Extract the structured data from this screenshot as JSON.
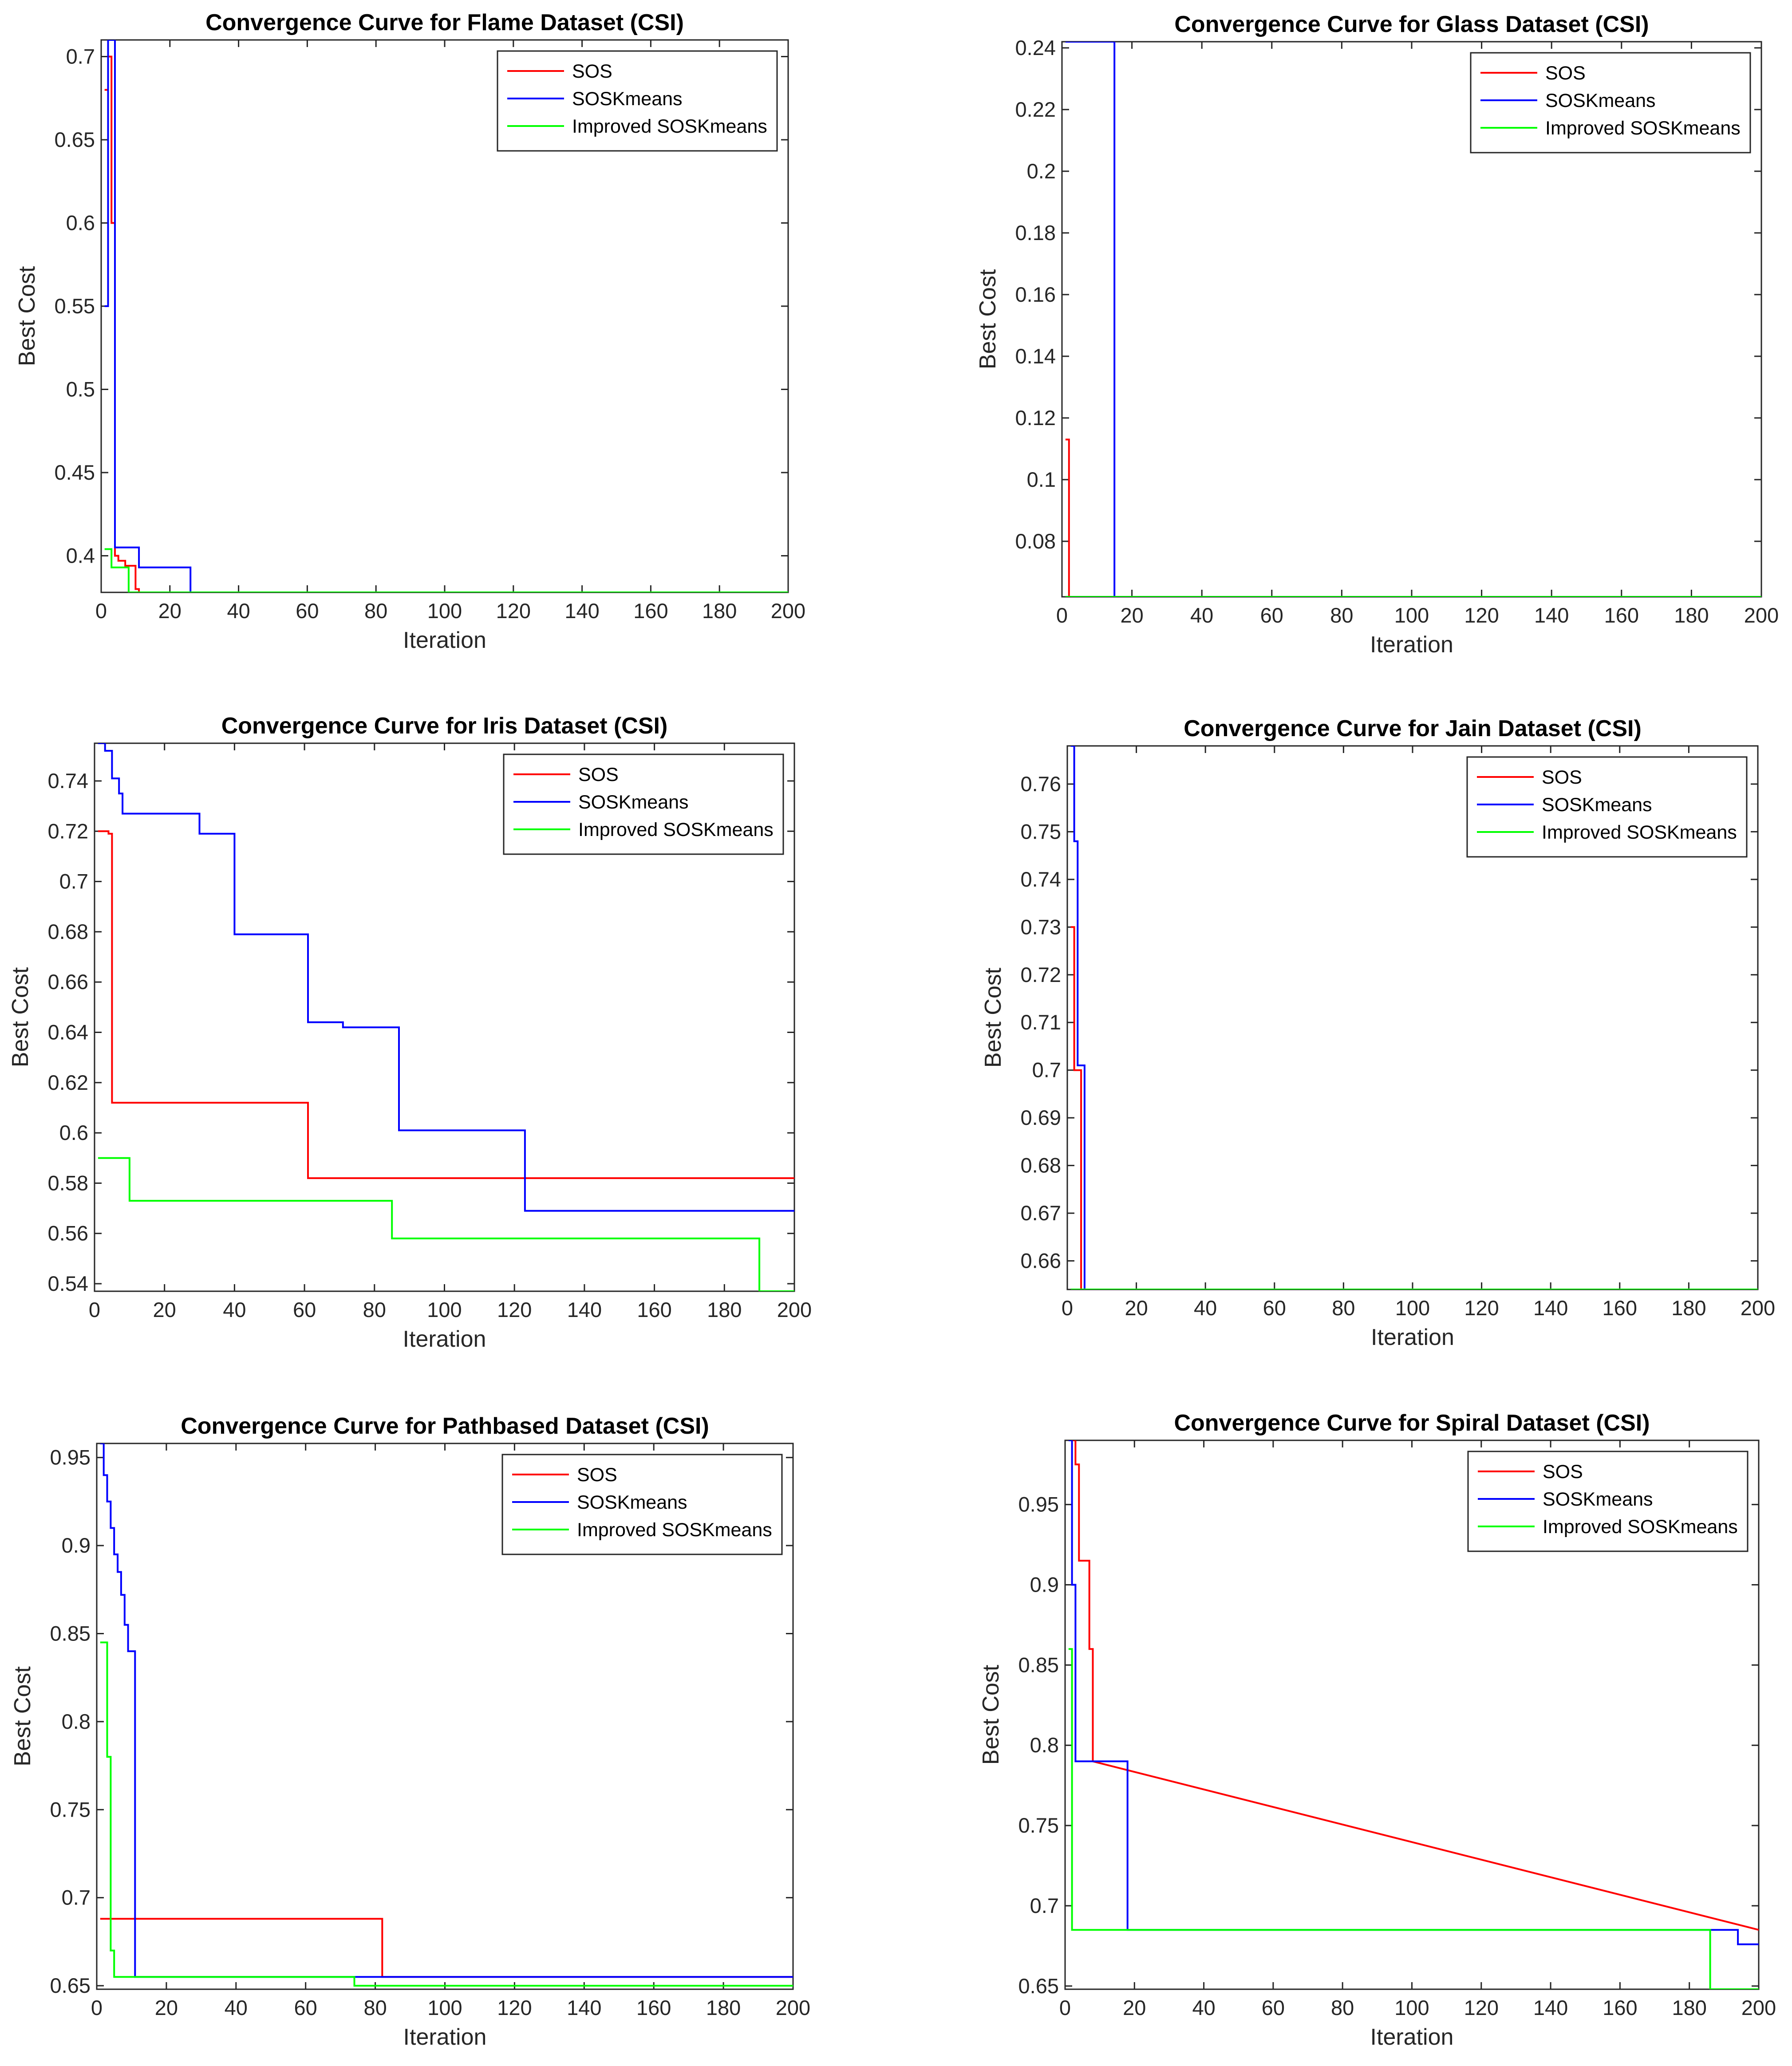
{
  "chart_data": [
    {
      "type": "line",
      "title": "Convergence Curve for Flame Dataset (CSI)",
      "xlabel": "Iteration",
      "ylabel": "Best Cost",
      "xlim": [
        0,
        200
      ],
      "ylim": [
        0.378,
        0.71
      ],
      "yticks": [
        0.4,
        0.45,
        0.5,
        0.55,
        0.6,
        0.65,
        0.7
      ],
      "ytick_labels": [
        "0.4",
        "0.45",
        "0.5",
        "0.55",
        "0.6",
        "0.65",
        "0.7"
      ],
      "xticks": [
        0,
        20,
        40,
        60,
        80,
        100,
        120,
        140,
        160,
        180,
        200
      ],
      "xtick_labels": [
        "0",
        "20",
        "40",
        "60",
        "80",
        "100",
        "120",
        "140",
        "160",
        "180",
        "200"
      ],
      "legend_position": "top-right",
      "legend": [
        "SOS",
        "SOSKmeans",
        "Improved SOSKmeans"
      ],
      "series": [
        {
          "name": "SOS",
          "color": "#ff0000",
          "x": [
            1,
            2,
            2,
            3,
            3,
            4,
            4,
            5,
            5,
            7,
            7,
            9,
            9,
            10,
            10,
            11,
            11,
            200
          ],
          "y": [
            0.68,
            0.68,
            0.7,
            0.7,
            0.6,
            0.6,
            0.4,
            0.4,
            0.397,
            0.397,
            0.394,
            0.394,
            0.394,
            0.394,
            0.38,
            0.38,
            0.378,
            0.378
          ]
        },
        {
          "name": "SOSKmeans",
          "color": "#0000ff",
          "x": [
            1,
            2,
            2,
            3,
            3,
            4,
            4,
            11,
            11,
            26,
            26,
            200
          ],
          "y": [
            0.55,
            0.55,
            0.71,
            0.71,
            0.71,
            0.71,
            0.405,
            0.405,
            0.393,
            0.393,
            0.378,
            0.378
          ]
        },
        {
          "name": "Improved SOSKmeans",
          "color": "#00ff00",
          "x": [
            1,
            3,
            3,
            7,
            7,
            8,
            8,
            200
          ],
          "y": [
            0.404,
            0.404,
            0.393,
            0.393,
            0.393,
            0.393,
            0.378,
            0.378
          ]
        }
      ]
    },
    {
      "type": "line",
      "title": "Convergence Curve for Glass Dataset (CSI)",
      "xlabel": "Iteration",
      "ylabel": "Best Cost",
      "xlim": [
        0,
        200
      ],
      "ylim": [
        0.062,
        0.242
      ],
      "yticks": [
        0.08,
        0.1,
        0.12,
        0.14,
        0.16,
        0.18,
        0.2,
        0.22,
        0.24
      ],
      "ytick_labels": [
        "0.08",
        "0.1",
        "0.12",
        "0.14",
        "0.16",
        "0.18",
        "0.2",
        "0.22",
        "0.24"
      ],
      "xticks": [
        0,
        20,
        40,
        60,
        80,
        100,
        120,
        140,
        160,
        180,
        200
      ],
      "xtick_labels": [
        "0",
        "20",
        "40",
        "60",
        "80",
        "100",
        "120",
        "140",
        "160",
        "180",
        "200"
      ],
      "legend_position": "top-right",
      "legend": [
        "SOS",
        "SOSKmeans",
        "Improved SOSKmeans"
      ],
      "series": [
        {
          "name": "SOS",
          "color": "#ff0000",
          "x": [
            1,
            2,
            2,
            200
          ],
          "y": [
            0.113,
            0.113,
            0.062,
            0.062
          ]
        },
        {
          "name": "SOSKmeans",
          "color": "#0000ff",
          "x": [
            1,
            14,
            14,
            15,
            15,
            200
          ],
          "y": [
            0.242,
            0.242,
            0.242,
            0.242,
            0.062,
            0.062
          ]
        },
        {
          "name": "Improved SOSKmeans",
          "color": "#00ff00",
          "x": [
            1,
            200
          ],
          "y": [
            0.062,
            0.062
          ]
        }
      ]
    },
    {
      "type": "line",
      "title": "Convergence Curve for Iris Dataset (CSI)",
      "xlabel": "Iteration",
      "ylabel": "Best Cost",
      "xlim": [
        0,
        200
      ],
      "ylim": [
        0.537,
        0.755
      ],
      "yticks": [
        0.54,
        0.56,
        0.58,
        0.6,
        0.62,
        0.64,
        0.66,
        0.68,
        0.7,
        0.72,
        0.74
      ],
      "ytick_labels": [
        "0.54",
        "0.56",
        "0.58",
        "0.6",
        "0.62",
        "0.64",
        "0.66",
        "0.68",
        "0.7",
        "0.72",
        "0.74"
      ],
      "xticks": [
        0,
        20,
        40,
        60,
        80,
        100,
        120,
        140,
        160,
        180,
        200
      ],
      "xtick_labels": [
        "0",
        "20",
        "40",
        "60",
        "80",
        "100",
        "120",
        "140",
        "160",
        "180",
        "200"
      ],
      "legend_position": "top-right",
      "legend": [
        "SOS",
        "SOSKmeans",
        "Improved SOSKmeans"
      ],
      "series": [
        {
          "name": "SOS",
          "color": "#ff0000",
          "x": [
            1,
            4,
            4,
            5,
            5,
            60,
            60,
            61,
            61,
            200
          ],
          "y": [
            0.72,
            0.72,
            0.719,
            0.719,
            0.612,
            0.612,
            0.612,
            0.612,
            0.582,
            0.582
          ]
        },
        {
          "name": "SOSKmeans",
          "color": "#0000ff",
          "x": [
            1,
            3,
            3,
            5,
            5,
            7,
            7,
            8,
            8,
            30,
            30,
            40,
            40,
            61,
            61,
            71,
            71,
            87,
            87,
            123,
            123,
            200
          ],
          "y": [
            0.755,
            0.755,
            0.752,
            0.752,
            0.741,
            0.741,
            0.735,
            0.735,
            0.727,
            0.727,
            0.719,
            0.719,
            0.679,
            0.679,
            0.644,
            0.644,
            0.642,
            0.642,
            0.601,
            0.601,
            0.569,
            0.569
          ]
        },
        {
          "name": "Improved SOSKmeans",
          "color": "#00ff00",
          "x": [
            1,
            10,
            10,
            85,
            85,
            190,
            190,
            200
          ],
          "y": [
            0.59,
            0.59,
            0.573,
            0.573,
            0.558,
            0.558,
            0.537,
            0.537
          ]
        }
      ]
    },
    {
      "type": "line",
      "title": "Convergence Curve for Jain Dataset (CSI)",
      "xlabel": "Iteration",
      "ylabel": "Best Cost",
      "xlim": [
        0,
        200
      ],
      "ylim": [
        0.654,
        0.768
      ],
      "yticks": [
        0.66,
        0.67,
        0.68,
        0.69,
        0.7,
        0.71,
        0.72,
        0.73,
        0.74,
        0.75,
        0.76
      ],
      "ytick_labels": [
        "0.66",
        "0.67",
        "0.68",
        "0.69",
        "0.7",
        "0.71",
        "0.72",
        "0.73",
        "0.74",
        "0.75",
        "0.76"
      ],
      "xticks": [
        0,
        20,
        40,
        60,
        80,
        100,
        120,
        140,
        160,
        180,
        200
      ],
      "xtick_labels": [
        "0",
        "20",
        "40",
        "60",
        "80",
        "100",
        "120",
        "140",
        "160",
        "180",
        "200"
      ],
      "legend_position": "top-right",
      "legend": [
        "SOS",
        "SOSKmeans",
        "Improved SOSKmeans"
      ],
      "series": [
        {
          "name": "SOS",
          "color": "#ff0000",
          "x": [
            1,
            2,
            2,
            4,
            4,
            200
          ],
          "y": [
            0.73,
            0.73,
            0.7,
            0.7,
            0.654,
            0.654
          ]
        },
        {
          "name": "SOSKmeans",
          "color": "#0000ff",
          "x": [
            1,
            2,
            2,
            3,
            3,
            5,
            5,
            200
          ],
          "y": [
            0.768,
            0.768,
            0.748,
            0.748,
            0.701,
            0.701,
            0.654,
            0.654
          ]
        },
        {
          "name": "Improved SOSKmeans",
          "color": "#00ff00",
          "x": [
            1,
            200
          ],
          "y": [
            0.654,
            0.654
          ]
        }
      ]
    },
    {
      "type": "line",
      "title": "Convergence Curve for Pathbased Dataset (CSI)",
      "xlabel": "Iteration",
      "ylabel": "Best Cost",
      "xlim": [
        0,
        200
      ],
      "ylim": [
        0.648,
        0.958
      ],
      "yticks": [
        0.65,
        0.7,
        0.75,
        0.8,
        0.85,
        0.9,
        0.95
      ],
      "ytick_labels": [
        "0.65",
        "0.7",
        "0.75",
        "0.8",
        "0.85",
        "0.9",
        "0.95"
      ],
      "xticks": [
        0,
        20,
        40,
        60,
        80,
        100,
        120,
        140,
        160,
        180,
        200
      ],
      "xtick_labels": [
        "0",
        "20",
        "40",
        "60",
        "80",
        "100",
        "120",
        "140",
        "160",
        "180",
        "200"
      ],
      "legend_position": "top-right",
      "legend": [
        "SOS",
        "SOSKmeans",
        "Improved SOSKmeans"
      ],
      "series": [
        {
          "name": "SOS",
          "color": "#ff0000",
          "x": [
            1,
            82,
            82,
            200
          ],
          "y": [
            0.688,
            0.688,
            0.655,
            0.655
          ]
        },
        {
          "name": "SOSKmeans",
          "color": "#0000ff",
          "x": [
            1,
            2,
            2,
            3,
            3,
            4,
            4,
            5,
            5,
            6,
            6,
            7,
            7,
            8,
            8,
            9,
            9,
            10,
            10,
            11,
            11,
            200
          ],
          "y": [
            0.958,
            0.958,
            0.94,
            0.94,
            0.925,
            0.925,
            0.91,
            0.91,
            0.895,
            0.895,
            0.885,
            0.885,
            0.872,
            0.872,
            0.855,
            0.855,
            0.84,
            0.84,
            0.84,
            0.84,
            0.655,
            0.655
          ]
        },
        {
          "name": "Improved SOSKmeans",
          "color": "#00ff00",
          "x": [
            1,
            3,
            3,
            4,
            4,
            5,
            5,
            74,
            74,
            200
          ],
          "y": [
            0.845,
            0.845,
            0.78,
            0.78,
            0.67,
            0.67,
            0.655,
            0.655,
            0.65,
            0.65
          ]
        }
      ]
    },
    {
      "type": "line",
      "title": "Convergence Curve for Spiral Dataset (CSI)",
      "xlabel": "Iteration",
      "ylabel": "Best Cost",
      "xlim": [
        0,
        200
      ],
      "ylim": [
        0.648,
        0.99
      ],
      "yticks": [
        0.65,
        0.7,
        0.75,
        0.8,
        0.85,
        0.9,
        0.95
      ],
      "ytick_labels": [
        "0.65",
        "0.7",
        "0.75",
        "0.8",
        "0.85",
        "0.9",
        "0.95"
      ],
      "xticks": [
        0,
        20,
        40,
        60,
        80,
        100,
        120,
        140,
        160,
        180,
        200
      ],
      "xtick_labels": [
        "0",
        "20",
        "40",
        "60",
        "80",
        "100",
        "120",
        "140",
        "160",
        "180",
        "200"
      ],
      "legend_position": "top-right",
      "legend": [
        "SOS",
        "SOSKmeans",
        "Improved SOSKmeans"
      ],
      "series": [
        {
          "name": "SOS",
          "color": "#ff0000",
          "x": [
            1,
            3,
            3,
            4,
            4,
            5,
            5,
            7,
            7,
            8,
            8,
            200
          ],
          "y": [
            0.99,
            0.99,
            0.975,
            0.975,
            0.915,
            0.915,
            0.915,
            0.915,
            0.86,
            0.86,
            0.79,
            0.685
          ]
        },
        {
          "name": "SOSKmeans",
          "color": "#0000ff",
          "x": [
            1,
            2,
            2,
            3,
            3,
            18,
            18,
            194,
            194,
            200
          ],
          "y": [
            0.99,
            0.99,
            0.9,
            0.9,
            0.79,
            0.79,
            0.685,
            0.685,
            0.676,
            0.676
          ]
        },
        {
          "name": "Improved SOSKmeans",
          "color": "#00ff00",
          "x": [
            1,
            2,
            2,
            186,
            186,
            200
          ],
          "y": [
            0.86,
            0.86,
            0.685,
            0.685,
            0.648,
            0.648
          ]
        }
      ]
    }
  ]
}
